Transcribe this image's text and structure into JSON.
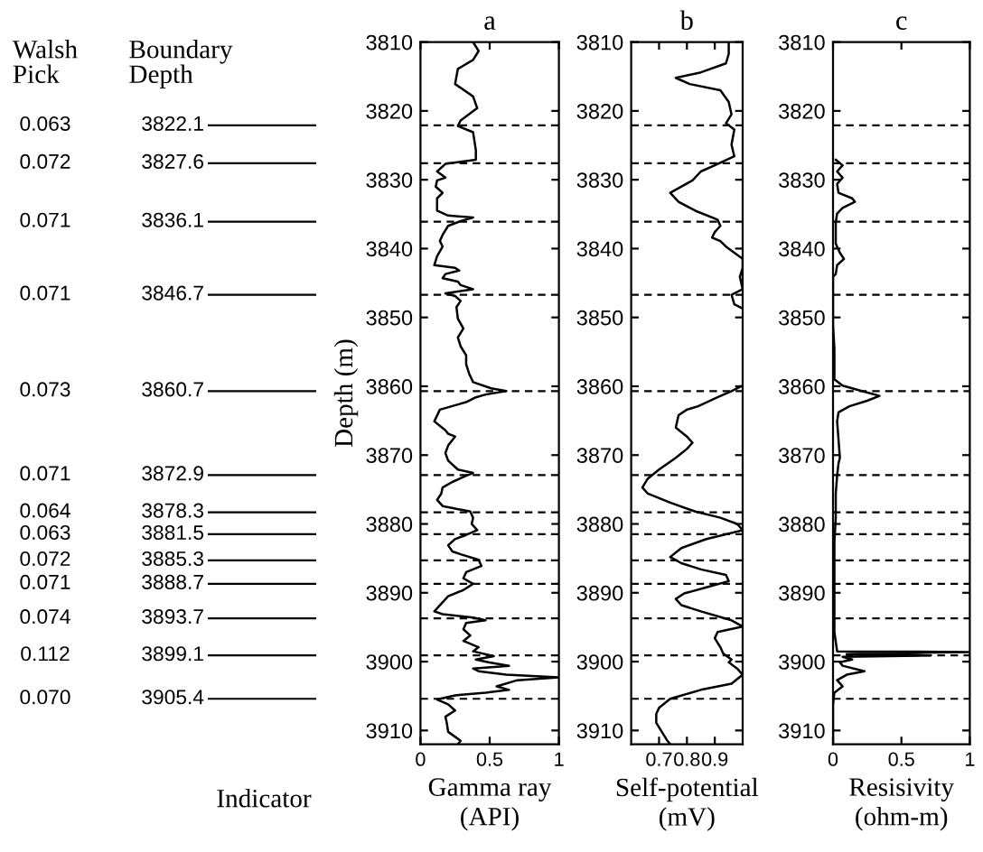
{
  "chart_data": [
    {
      "type": "line",
      "title": "a",
      "xlabel": "Gamma ray\n(API)",
      "ylabel": "Depth (m)",
      "xlim": [
        0,
        1
      ],
      "xticks": [
        0,
        0.5,
        1
      ],
      "ylim": [
        3912,
        3810
      ],
      "yticks": [
        3810,
        3820,
        3830,
        3840,
        3850,
        3860,
        3870,
        3880,
        3890,
        3900,
        3910
      ],
      "series": [
        {
          "color": "#000000",
          "x": [
            0.38,
            0.42,
            0.38,
            0.27,
            0.25,
            0.38,
            0.41,
            0.29,
            0.27,
            0.38,
            0.4,
            0.4,
            0.18,
            0.12,
            0.18,
            0.12,
            0.11,
            0.16,
            0.12,
            0.12,
            0.2,
            0.38,
            0.29,
            0.2,
            0.16,
            0.14,
            0.16,
            0.12,
            0.1,
            0.25,
            0.28,
            0.18,
            0.16,
            0.27,
            0.29,
            0.38,
            0.18,
            0.25,
            0.29,
            0.26,
            0.27,
            0.31,
            0.27,
            0.29,
            0.33,
            0.33,
            0.35,
            0.38,
            0.51,
            0.62,
            0.47,
            0.4,
            0.33,
            0.14,
            0.1,
            0.18,
            0.2,
            0.25,
            0.2,
            0.18,
            0.2,
            0.27,
            0.38,
            0.33,
            0.23,
            0.16,
            0.15,
            0.12,
            0.16,
            0.36,
            0.38,
            0.37,
            0.41,
            0.33,
            0.25,
            0.2,
            0.23,
            0.29,
            0.42,
            0.44,
            0.33,
            0.31,
            0.38,
            0.31,
            0.2,
            0.14,
            0.1,
            0.16,
            0.38,
            0.47,
            0.33,
            0.31,
            0.36,
            0.31,
            0.42,
            0.38,
            0.53,
            0.4,
            0.49,
            0.64,
            0.38,
            0.42,
            0.62,
            1.0,
            0.7,
            0.55,
            0.64,
            0.47,
            0.25,
            0.12,
            0.2,
            0.25,
            0.18,
            0.19,
            0.2,
            0.29,
            0.27
          ],
          "values": [
            3810.0,
            3811.3,
            3812.6,
            3813.9,
            3816.1,
            3817.9,
            3819.6,
            3821.4,
            3822.2,
            3823.1,
            3825.7,
            3827.1,
            3827.7,
            3828.8,
            3829.7,
            3830.1,
            3831.0,
            3831.9,
            3832.7,
            3834.5,
            3835.2,
            3835.5,
            3836.0,
            3836.7,
            3838.0,
            3838.9,
            3839.7,
            3841.1,
            3842.4,
            3842.8,
            3843.2,
            3843.7,
            3844.3,
            3844.8,
            3845.3,
            3845.9,
            3846.5,
            3846.9,
            3847.6,
            3848.5,
            3850.2,
            3851.6,
            3852.9,
            3854.2,
            3855.5,
            3856.8,
            3858.1,
            3859.4,
            3860.3,
            3860.7,
            3861.2,
            3861.6,
            3862.3,
            3863.4,
            3865.1,
            3866.4,
            3866.9,
            3867.3,
            3868.6,
            3869.7,
            3870.8,
            3872.1,
            3872.6,
            3873.0,
            3873.9,
            3874.7,
            3875.6,
            3876.5,
            3877.4,
            3878.2,
            3879.1,
            3880.0,
            3880.9,
            3881.6,
            3882.2,
            3883.1,
            3884.0,
            3884.4,
            3885.2,
            3886.1,
            3887.0,
            3887.9,
            3888.7,
            3889.6,
            3890.5,
            3891.8,
            3892.7,
            3893.1,
            3893.6,
            3894.0,
            3894.4,
            3895.3,
            3896.2,
            3897.0,
            3897.9,
            3898.5,
            3899.2,
            3899.7,
            3900.1,
            3900.6,
            3901.0,
            3901.4,
            3901.9,
            3902.3,
            3902.7,
            3903.6,
            3904.1,
            3904.5,
            3904.9,
            3905.5,
            3906.2,
            3907.1,
            3908.0,
            3908.9,
            3910.2,
            3911.5,
            3912.0
          ]
        }
      ],
      "ref_lines": [
        {
          "axis": "y",
          "value": 3822.1,
          "label": "3822.1",
          "color": "#000000",
          "line_style": "dashed"
        },
        {
          "axis": "y",
          "value": 3827.6,
          "label": "3827.6",
          "color": "#000000",
          "line_style": "dashed"
        },
        {
          "axis": "y",
          "value": 3836.1,
          "label": "3836.1",
          "color": "#000000",
          "line_style": "dashed"
        },
        {
          "axis": "y",
          "value": 3846.7,
          "label": "3846.7",
          "color": "#000000",
          "line_style": "dashed"
        },
        {
          "axis": "y",
          "value": 3860.7,
          "label": "3860.7",
          "color": "#000000",
          "line_style": "dashed"
        },
        {
          "axis": "y",
          "value": 3872.9,
          "label": "3872.9",
          "color": "#000000",
          "line_style": "dashed"
        },
        {
          "axis": "y",
          "value": 3878.3,
          "label": "3878.3",
          "color": "#000000",
          "line_style": "dashed"
        },
        {
          "axis": "y",
          "value": 3881.5,
          "label": "3881.5",
          "color": "#000000",
          "line_style": "dashed"
        },
        {
          "axis": "y",
          "value": 3885.3,
          "label": "3885.3",
          "color": "#000000",
          "line_style": "dashed"
        },
        {
          "axis": "y",
          "value": 3888.7,
          "label": "3888.7",
          "color": "#000000",
          "line_style": "dashed"
        },
        {
          "axis": "y",
          "value": 3893.7,
          "label": "3893.7",
          "color": "#000000",
          "line_style": "dashed"
        },
        {
          "axis": "y",
          "value": 3899.1,
          "label": "3899.1",
          "color": "#000000",
          "line_style": "dashed"
        },
        {
          "axis": "y",
          "value": 3905.4,
          "label": "3905.4",
          "color": "#000000",
          "line_style": "dashed"
        }
      ],
      "annotations": [
        "Walsh\nPick",
        "Boundary\nDepth",
        "Indicator",
        "0.063",
        "0.072",
        "0.071",
        "0.071",
        "0.073",
        "0.071",
        "0.064",
        "0.063",
        "0.072",
        "0.071",
        "0.074",
        "0.112",
        "0.070"
      ]
    },
    {
      "type": "line",
      "title": "b",
      "xlabel": "Self-potential\n(mV)",
      "xlim": [
        0.6,
        1.0
      ],
      "xticks": [
        0.7,
        0.8,
        0.9
      ],
      "ylim": [
        3912,
        3810
      ],
      "yticks": [
        3810,
        3820,
        3830,
        3840,
        3850,
        3860,
        3870,
        3880,
        3890,
        3900,
        3910
      ],
      "series": [
        {
          "color": "#000000",
          "x": [
            0.95,
            0.95,
            0.94,
            0.85,
            0.76,
            0.81,
            0.92,
            0.95,
            0.96,
            0.94,
            0.97,
            0.96,
            0.97,
            0.9,
            0.85,
            0.82,
            0.74,
            0.77,
            0.83,
            0.91,
            0.92,
            0.9,
            0.89,
            0.92,
            0.94,
            1.0,
            1.0,
            0.99,
            1.0,
            0.96,
            0.97,
            1.0,
            null,
            1.0,
            0.96,
            0.91,
            0.84,
            0.8,
            0.77,
            0.76,
            0.8,
            0.82,
            0.8,
            0.76,
            0.7,
            0.66,
            0.64,
            0.66,
            0.74,
            0.83,
            0.92,
            0.98,
            1.0,
            0.87,
            0.78,
            0.74,
            0.78,
            0.85,
            0.94,
            0.95,
            0.87,
            0.79,
            0.76,
            0.78,
            0.85,
            0.96,
            1.0,
            0.91,
            0.9,
            0.92,
            0.93,
            0.96,
            0.95,
            0.98,
            1.0,
            0.96,
            0.85,
            0.74,
            0.7,
            0.69,
            0.69,
            0.71,
            0.73,
            0.74
          ],
          "values": [
            3810.0,
            3811.7,
            3813.1,
            3814.4,
            3815.2,
            3816.1,
            3817.0,
            3818.7,
            3820.5,
            3821.8,
            3822.7,
            3824.9,
            3826.6,
            3827.9,
            3828.8,
            3830.1,
            3831.9,
            3833.2,
            3834.5,
            3835.8,
            3836.7,
            3837.6,
            3838.4,
            3838.9,
            3839.7,
            3841.5,
            3842.8,
            3844.1,
            3845.9,
            3846.7,
            3848.1,
            3848.7,
            null,
            3859.9,
            3860.7,
            3861.6,
            3862.9,
            3863.4,
            3864.2,
            3866.0,
            3867.3,
            3868.2,
            3869.1,
            3870.4,
            3872.1,
            3873.4,
            3874.7,
            3875.6,
            3876.9,
            3878.2,
            3879.1,
            3880.0,
            3880.9,
            3882.2,
            3883.5,
            3884.8,
            3885.7,
            3886.6,
            3887.4,
            3888.3,
            3889.2,
            3890.1,
            3890.9,
            3891.8,
            3892.7,
            3894.0,
            3894.9,
            3895.7,
            3896.6,
            3897.9,
            3898.8,
            3899.7,
            3900.1,
            3901.0,
            3901.9,
            3903.2,
            3904.1,
            3905.4,
            3906.7,
            3907.6,
            3908.9,
            3910.2,
            3911.5,
            3912.0
          ]
        }
      ],
      "ref_lines": [
        {
          "axis": "y",
          "value": 3822.1,
          "color": "#000000",
          "line_style": "dashed"
        },
        {
          "axis": "y",
          "value": 3827.6,
          "color": "#000000",
          "line_style": "dashed"
        },
        {
          "axis": "y",
          "value": 3836.1,
          "color": "#000000",
          "line_style": "dashed"
        },
        {
          "axis": "y",
          "value": 3846.7,
          "color": "#000000",
          "line_style": "dashed"
        },
        {
          "axis": "y",
          "value": 3860.7,
          "color": "#000000",
          "line_style": "dashed"
        },
        {
          "axis": "y",
          "value": 3872.9,
          "color": "#000000",
          "line_style": "dashed"
        },
        {
          "axis": "y",
          "value": 3878.3,
          "color": "#000000",
          "line_style": "dashed"
        },
        {
          "axis": "y",
          "value": 3881.5,
          "color": "#000000",
          "line_style": "dashed"
        },
        {
          "axis": "y",
          "value": 3885.3,
          "color": "#000000",
          "line_style": "dashed"
        },
        {
          "axis": "y",
          "value": 3888.7,
          "color": "#000000",
          "line_style": "dashed"
        },
        {
          "axis": "y",
          "value": 3893.7,
          "color": "#000000",
          "line_style": "dashed"
        },
        {
          "axis": "y",
          "value": 3899.1,
          "color": "#000000",
          "line_style": "dashed"
        },
        {
          "axis": "y",
          "value": 3905.4,
          "color": "#000000",
          "line_style": "dashed"
        }
      ]
    },
    {
      "type": "line",
      "title": "c",
      "xlabel": "Resisivity\n(ohm-m)",
      "xlim": [
        0,
        1
      ],
      "xticks": [
        0,
        0.5,
        1
      ],
      "ylim": [
        3912,
        3810
      ],
      "yticks": [
        3810,
        3820,
        3830,
        3840,
        3850,
        3860,
        3870,
        3880,
        3890,
        3900,
        3910
      ],
      "series": [
        {
          "color": "#000000",
          "x": [
            0.02,
            0.07,
            0.03,
            0.07,
            0.03,
            0.04,
            0.14,
            0.16,
            0.07,
            0.03,
            0.02,
            0.02,
            0.02,
            0.05,
            0.08,
            0.03,
            0.02,
            0,
            0,
            0.01,
            0.01,
            0.01,
            0.07,
            0.21,
            0.34,
            0.25,
            0.12,
            0.04,
            0.03,
            0.04,
            0.05,
            0.04,
            0.03,
            0.02,
            0.02,
            0.01,
            0.01,
            0.01,
            0.01,
            0.03,
            1.0,
            0.1,
            0.71,
            0.07,
            0.14,
            0.05,
            0.07,
            0.23,
            0.1,
            0.03,
            0.07,
            0.01,
            0,
            0,
            0
          ],
          "values": [
            3827.1,
            3827.9,
            3828.8,
            3829.7,
            3830.6,
            3831.9,
            3832.7,
            3833.2,
            3834.1,
            3834.9,
            3836.2,
            3838.0,
            3839.3,
            3840.6,
            3841.5,
            3842.4,
            3843.7,
            3844.1,
            3851.1,
            3854.5,
            3858.1,
            3859.0,
            3859.9,
            3860.7,
            3861.4,
            3862.1,
            3862.9,
            3863.8,
            3865.1,
            3867.7,
            3870.4,
            3871.2,
            3873.0,
            3875.6,
            3879.1,
            3882.6,
            3887.0,
            3890.5,
            3895.7,
            3898.5,
            3898.6,
            3898.9,
            3899.1,
            3899.3,
            3899.7,
            3900.1,
            3900.6,
            3901.4,
            3901.9,
            3902.7,
            3903.6,
            3904.5,
            3906.2,
            3909.7,
            3912.0
          ]
        }
      ],
      "ref_lines": [
        {
          "axis": "y",
          "value": 3822.1,
          "color": "#000000",
          "line_style": "dashed"
        },
        {
          "axis": "y",
          "value": 3827.6,
          "color": "#000000",
          "line_style": "dashed"
        },
        {
          "axis": "y",
          "value": 3836.1,
          "color": "#000000",
          "line_style": "dashed"
        },
        {
          "axis": "y",
          "value": 3846.7,
          "color": "#000000",
          "line_style": "dashed"
        },
        {
          "axis": "y",
          "value": 3860.7,
          "color": "#000000",
          "line_style": "dashed"
        },
        {
          "axis": "y",
          "value": 3872.9,
          "color": "#000000",
          "line_style": "dashed"
        },
        {
          "axis": "y",
          "value": 3878.3,
          "color": "#000000",
          "line_style": "dashed"
        },
        {
          "axis": "y",
          "value": 3881.5,
          "color": "#000000",
          "line_style": "dashed"
        },
        {
          "axis": "y",
          "value": 3885.3,
          "color": "#000000",
          "line_style": "dashed"
        },
        {
          "axis": "y",
          "value": 3888.7,
          "color": "#000000",
          "line_style": "dashed"
        },
        {
          "axis": "y",
          "value": 3893.7,
          "color": "#000000",
          "line_style": "dashed"
        },
        {
          "axis": "y",
          "value": 3899.1,
          "color": "#000000",
          "line_style": "dashed"
        },
        {
          "axis": "y",
          "value": 3905.4,
          "color": "#000000",
          "line_style": "dashed"
        }
      ]
    }
  ]
}
